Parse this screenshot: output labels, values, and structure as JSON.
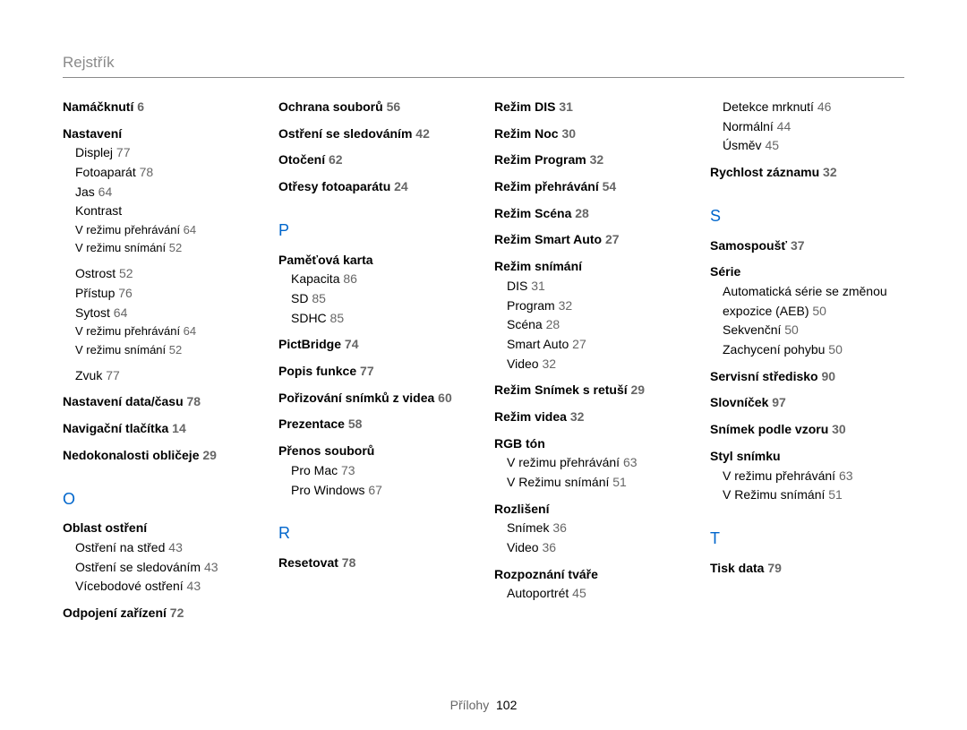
{
  "header": "Rejstřík",
  "footer": {
    "label": "Přílohy",
    "page": "102"
  },
  "columns": [
    [
      {
        "type": "bold",
        "text": "Namáčknutí",
        "page": "6"
      },
      {
        "type": "bold",
        "text": "Nastavení",
        "gapTop": true
      },
      {
        "type": "sub",
        "text": "Displej",
        "page": "77"
      },
      {
        "type": "sub",
        "text": "Fotoaparát",
        "page": "78"
      },
      {
        "type": "sub",
        "text": "Jas",
        "page": "64"
      },
      {
        "type": "sub",
        "text": "Kontrast"
      },
      {
        "type": "sub2",
        "text": "V režimu přehrávání",
        "page": "64"
      },
      {
        "type": "sub2",
        "text": "V režimu snímání",
        "page": "52"
      },
      {
        "type": "sub",
        "text": "Ostrost",
        "page": "52",
        "gapTop": true
      },
      {
        "type": "sub",
        "text": "Přístup",
        "page": "76"
      },
      {
        "type": "sub",
        "text": "Sytost",
        "page": "64"
      },
      {
        "type": "sub2",
        "text": "V režimu přehrávání",
        "page": "64"
      },
      {
        "type": "sub2",
        "text": "V režimu snímání",
        "page": "52"
      },
      {
        "type": "sub",
        "text": "Zvuk",
        "page": "77",
        "gapTop": true
      },
      {
        "type": "bold",
        "text": "Nastavení data/času",
        "page": "78",
        "gapTop": true
      },
      {
        "type": "bold",
        "text": "Navigační tlačítka",
        "page": "14",
        "gapTop": true
      },
      {
        "type": "bold",
        "text": "Nedokonalosti obličeje",
        "page": "29",
        "gapTop": true
      },
      {
        "type": "letter",
        "text": "O"
      },
      {
        "type": "bold",
        "text": "Oblast ostření"
      },
      {
        "type": "sub",
        "text": "Ostření na střed",
        "page": "43"
      },
      {
        "type": "sub",
        "text": "Ostření se sledováním",
        "page": "43"
      },
      {
        "type": "sub",
        "text": "Vícebodové ostření",
        "page": "43"
      },
      {
        "type": "bold",
        "text": "Odpojení zařízení",
        "page": "72",
        "gapTop": true
      }
    ],
    [
      {
        "type": "bold",
        "text": "Ochrana souborů",
        "page": "56"
      },
      {
        "type": "bold",
        "text": "Ostření se sledováním",
        "page": "42",
        "gapTop": true
      },
      {
        "type": "bold",
        "text": "Otočení",
        "page": "62",
        "gapTop": true
      },
      {
        "type": "bold",
        "text": "Otřesy fotoaparátu",
        "page": "24",
        "gapTop": true
      },
      {
        "type": "letter",
        "text": "P"
      },
      {
        "type": "bold",
        "text": "Paměťová karta"
      },
      {
        "type": "sub",
        "text": "Kapacita",
        "page": "86"
      },
      {
        "type": "sub",
        "text": "SD",
        "page": "85"
      },
      {
        "type": "sub",
        "text": "SDHC",
        "page": "85"
      },
      {
        "type": "bold",
        "text": "PictBridge",
        "page": "74",
        "gapTop": true
      },
      {
        "type": "bold",
        "text": "Popis funkce",
        "page": "77",
        "gapTop": true
      },
      {
        "type": "bold",
        "text": "Pořizování snímků z videa",
        "page": "60",
        "gapTop": true
      },
      {
        "type": "bold",
        "text": "Prezentace",
        "page": "58",
        "gapTop": true
      },
      {
        "type": "bold",
        "text": "Přenos souborů",
        "gapTop": true
      },
      {
        "type": "sub",
        "text": "Pro Mac",
        "page": "73"
      },
      {
        "type": "sub",
        "text": "Pro Windows",
        "page": "67"
      },
      {
        "type": "letter",
        "text": "R"
      },
      {
        "type": "bold",
        "text": "Resetovat",
        "page": "78"
      }
    ],
    [
      {
        "type": "bold",
        "text": "Režim DIS",
        "page": "31"
      },
      {
        "type": "bold",
        "text": "Režim Noc",
        "page": "30",
        "gapTop": true
      },
      {
        "type": "bold",
        "text": "Režim Program",
        "page": "32",
        "gapTop": true
      },
      {
        "type": "bold",
        "text": "Režim přehrávání",
        "page": "54",
        "gapTop": true
      },
      {
        "type": "bold",
        "text": "Režim Scéna",
        "page": "28",
        "gapTop": true
      },
      {
        "type": "bold",
        "text": "Režim Smart Auto",
        "page": "27",
        "gapTop": true
      },
      {
        "type": "bold",
        "text": "Režim snímání",
        "gapTop": true
      },
      {
        "type": "sub",
        "text": "DIS",
        "page": "31"
      },
      {
        "type": "sub",
        "text": "Program",
        "page": "32"
      },
      {
        "type": "sub",
        "text": "Scéna",
        "page": "28"
      },
      {
        "type": "sub",
        "text": "Smart Auto",
        "page": "27"
      },
      {
        "type": "sub",
        "text": "Video",
        "page": "32"
      },
      {
        "type": "bold",
        "text": "Režim Snímek s retuší",
        "page": "29",
        "gapTop": true
      },
      {
        "type": "bold",
        "text": "Režim videa",
        "page": "32",
        "gapTop": true
      },
      {
        "type": "bold",
        "text": "RGB tón",
        "gapTop": true
      },
      {
        "type": "sub",
        "text": "V režimu přehrávání",
        "page": "63"
      },
      {
        "type": "sub",
        "text": "V Režimu snímání",
        "page": "51"
      },
      {
        "type": "bold",
        "text": "Rozlišení",
        "gapTop": true
      },
      {
        "type": "sub",
        "text": "Snímek",
        "page": "36"
      },
      {
        "type": "sub",
        "text": "Video",
        "page": "36"
      },
      {
        "type": "bold",
        "text": "Rozpoznání tváře",
        "gapTop": true
      },
      {
        "type": "sub",
        "text": "Autoportrét",
        "page": "45"
      }
    ],
    [
      {
        "type": "sub",
        "text": "Detekce mrknutí",
        "page": "46"
      },
      {
        "type": "sub",
        "text": "Normální",
        "page": "44"
      },
      {
        "type": "sub",
        "text": "Úsměv",
        "page": "45"
      },
      {
        "type": "bold",
        "text": "Rychlost záznamu",
        "page": "32",
        "gapTop": true
      },
      {
        "type": "letter",
        "text": "S"
      },
      {
        "type": "bold",
        "text": "Samospoušť",
        "page": "37"
      },
      {
        "type": "bold",
        "text": "Série",
        "gapTop": true
      },
      {
        "type": "sub",
        "text": "Automatická série se změnou expozice (AEB)",
        "page": "50"
      },
      {
        "type": "sub",
        "text": "Sekvenční",
        "page": "50"
      },
      {
        "type": "sub",
        "text": "Zachycení pohybu",
        "page": "50"
      },
      {
        "type": "bold",
        "text": "Servisní středisko",
        "page": "90",
        "gapTop": true
      },
      {
        "type": "bold",
        "text": "Slovníček",
        "page": "97",
        "gapTop": true
      },
      {
        "type": "bold",
        "text": "Snímek podle vzoru",
        "page": "30",
        "gapTop": true
      },
      {
        "type": "bold",
        "text": "Styl snímku",
        "gapTop": true
      },
      {
        "type": "sub",
        "text": "V režimu přehrávání",
        "page": "63"
      },
      {
        "type": "sub",
        "text": "V Režimu snímání",
        "page": "51"
      },
      {
        "type": "letter",
        "text": "T"
      },
      {
        "type": "bold",
        "text": "Tisk data",
        "page": "79"
      }
    ]
  ]
}
